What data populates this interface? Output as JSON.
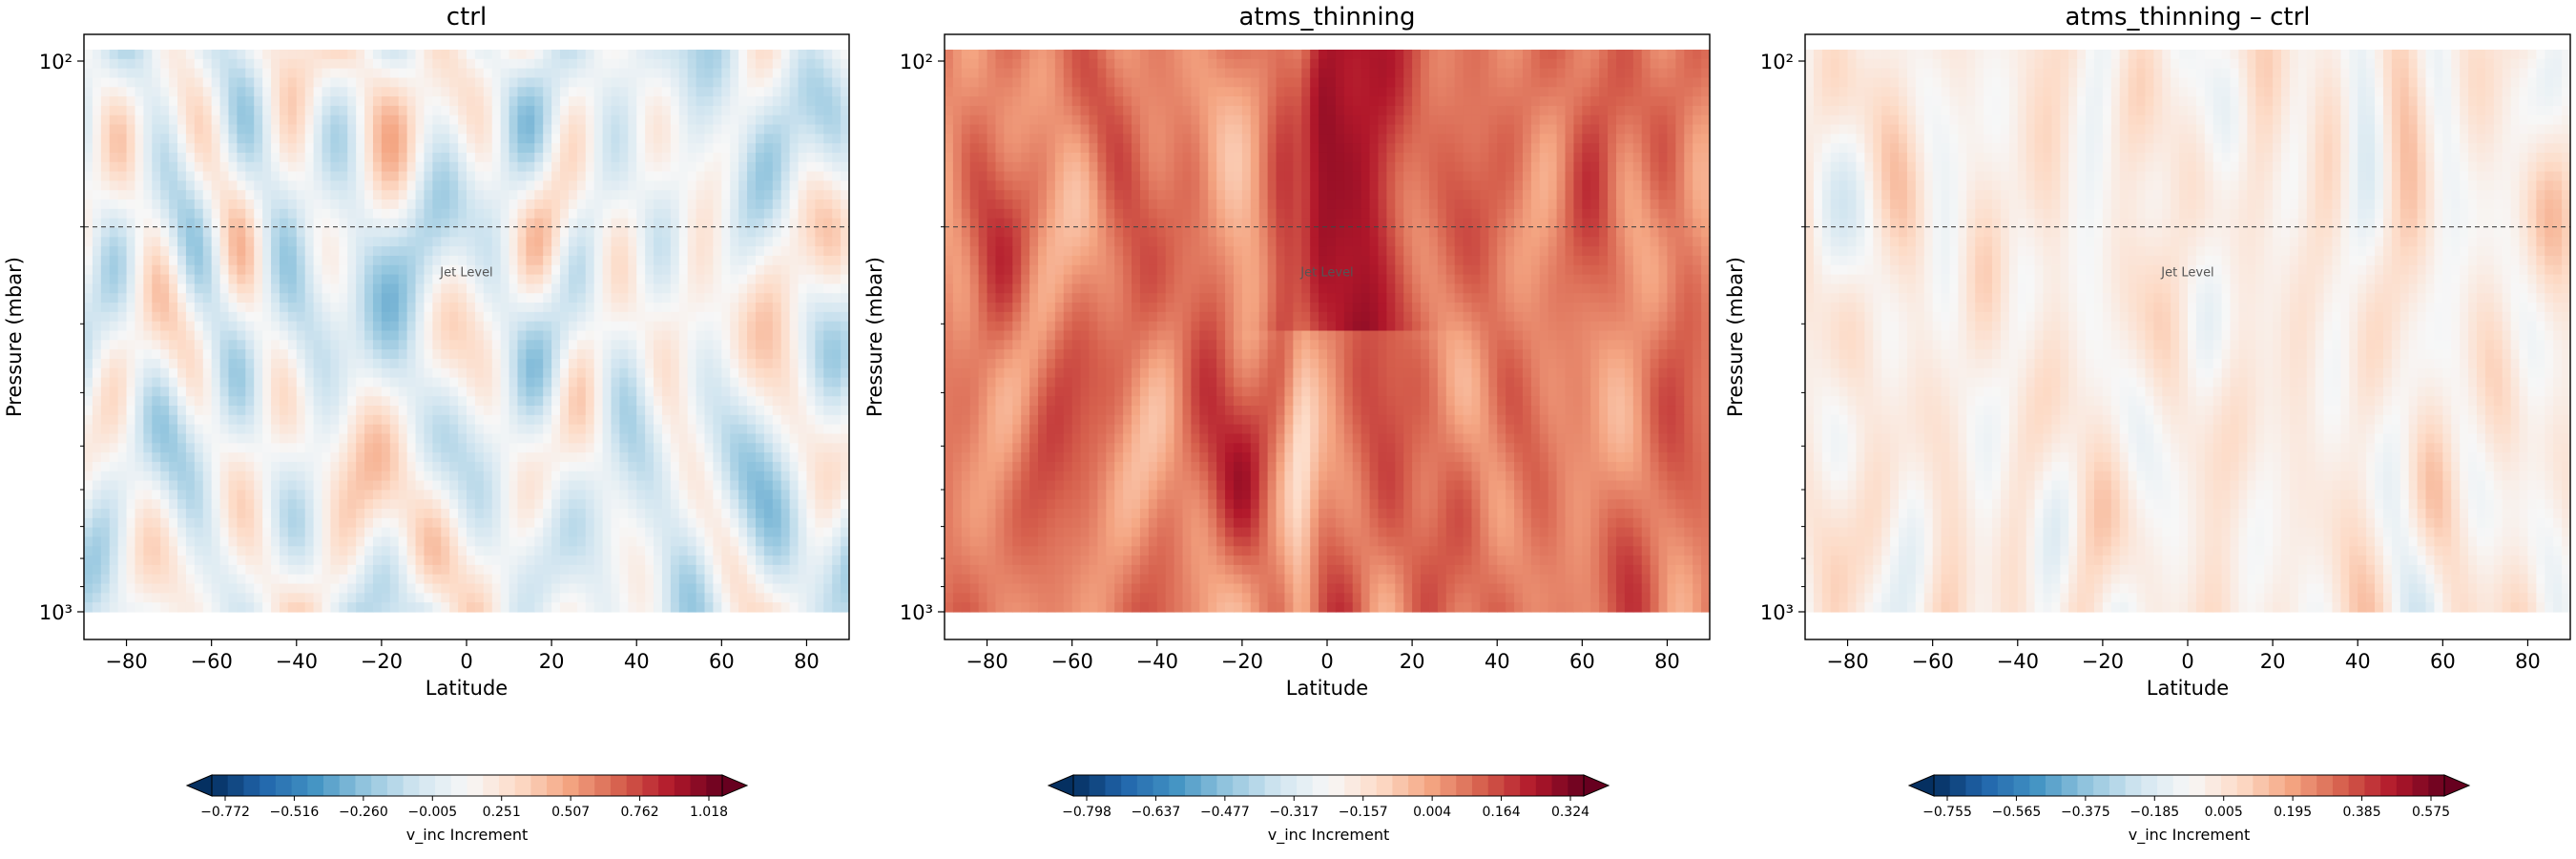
{
  "chart_data": [
    {
      "type": "heatmap",
      "title": "ctrl",
      "xlabel": "Latitude",
      "ylabel": "Pressure (mbar)",
      "xlim": [
        -90,
        90
      ],
      "xticks": [
        "−80",
        "−60",
        "−40",
        "−20",
        "0",
        "20",
        "40",
        "60",
        "80"
      ],
      "ylim": [
        1000,
        100
      ],
      "yscale": "log",
      "yticks": [
        "10²",
        "10³"
      ],
      "reference_line": {
        "pressure_mbar": 200,
        "style": "dashed"
      },
      "annotation": "Jet Level",
      "colormap": "RdBu_r",
      "value_range": [
        -1.03,
        1.018
      ],
      "colorbar": {
        "label": "v_inc Increment",
        "ticks": [
          "−0.772",
          "−0.516",
          "−0.260",
          "−0.005",
          "0.251",
          "0.507",
          "0.762",
          "1.018"
        ],
        "extend": "both"
      },
      "field": {
        "mean": -0.06,
        "amplitude": 0.38
      }
    },
    {
      "type": "heatmap",
      "title": "atms_thinning",
      "xlabel": "Latitude",
      "ylabel": "Pressure (mbar)",
      "xlim": [
        -90,
        90
      ],
      "xticks": [
        "−80",
        "−60",
        "−40",
        "−20",
        "0",
        "20",
        "40",
        "60",
        "80"
      ],
      "ylim": [
        1000,
        100
      ],
      "yscale": "log",
      "yticks": [
        "10²",
        "10³"
      ],
      "reference_line": {
        "pressure_mbar": 200,
        "style": "dashed"
      },
      "annotation": "Jet Level",
      "colormap": "RdBu_r",
      "value_range": [
        -0.8,
        0.4
      ],
      "colorbar": {
        "label": "v_inc Increment",
        "ticks": [
          "−0.798",
          "−0.637",
          "−0.477",
          "−0.317",
          "−0.157",
          "0.004",
          "0.164",
          "0.324"
        ],
        "extend": "both"
      },
      "field": {
        "mean": 0.11,
        "amplitude": 0.15
      }
    },
    {
      "type": "heatmap",
      "title": "atms_thinning – ctrl",
      "xlabel": "Latitude",
      "ylabel": "Pressure (mbar)",
      "xlim": [
        -90,
        90
      ],
      "xticks": [
        "−80",
        "−60",
        "−40",
        "−20",
        "0",
        "20",
        "40",
        "60",
        "80"
      ],
      "ylim": [
        1000,
        100
      ],
      "yscale": "log",
      "yticks": [
        "10²",
        "10³"
      ],
      "reference_line": {
        "pressure_mbar": 200,
        "style": "dashed"
      },
      "annotation": "Jet Level",
      "colormap": "RdBu_r",
      "value_range": [
        -0.76,
        0.76
      ],
      "colorbar": {
        "label": "v_inc Increment",
        "ticks": [
          "−0.755",
          "−0.565",
          "−0.375",
          "−0.185",
          "0.005",
          "0.195",
          "0.385",
          "0.575"
        ],
        "extend": "both"
      },
      "field": {
        "mean": 0.06,
        "amplitude": 0.16
      }
    }
  ]
}
